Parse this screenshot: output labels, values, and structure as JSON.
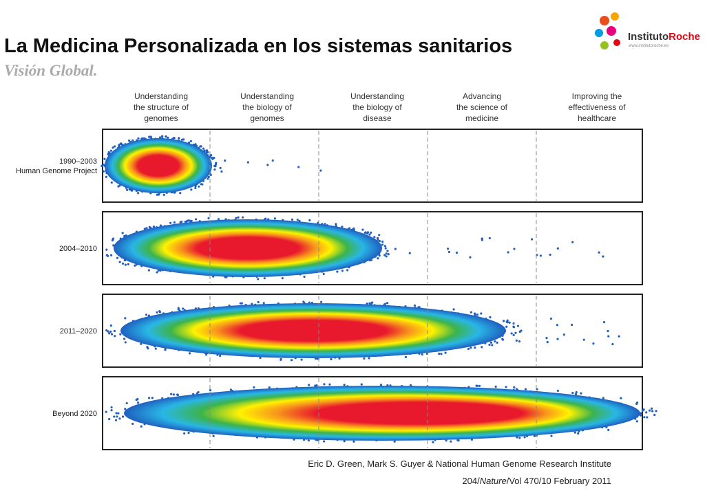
{
  "header": {
    "title": "La Medicina Personalizada en los sistemas sanitarios",
    "subtitle": "Visión Global."
  },
  "logo": {
    "name_part1": "Instituto",
    "name_part2": "Roche",
    "url": "www.institutoroche.es"
  },
  "columns": [
    {
      "lines": [
        "Understanding",
        "the structure of",
        "genomes"
      ]
    },
    {
      "lines": [
        "Understanding",
        "the biology of",
        "genomes"
      ]
    },
    {
      "lines": [
        "Understanding",
        "the biology of",
        "disease"
      ]
    },
    {
      "lines": [
        "Advancing",
        "the science of",
        "medicine"
      ]
    },
    {
      "lines": [
        "Improving the",
        "effectiveness of",
        "healthcare"
      ]
    }
  ],
  "rows": [
    {
      "lines": [
        "1990–2003",
        "Human Genome Project"
      ]
    },
    {
      "lines": [
        "2004–2010"
      ]
    },
    {
      "lines": [
        "2011–2020"
      ]
    },
    {
      "lines": [
        "Beyond 2020"
      ]
    }
  ],
  "citation": {
    "authors": "Eric D. Green, Mark S. Guyer & National Human Genome Research Institute",
    "ref_prefix": "204/",
    "ref_journal": "Nature",
    "ref_suffix": "/Vol 470/10 February 2011"
  }
}
